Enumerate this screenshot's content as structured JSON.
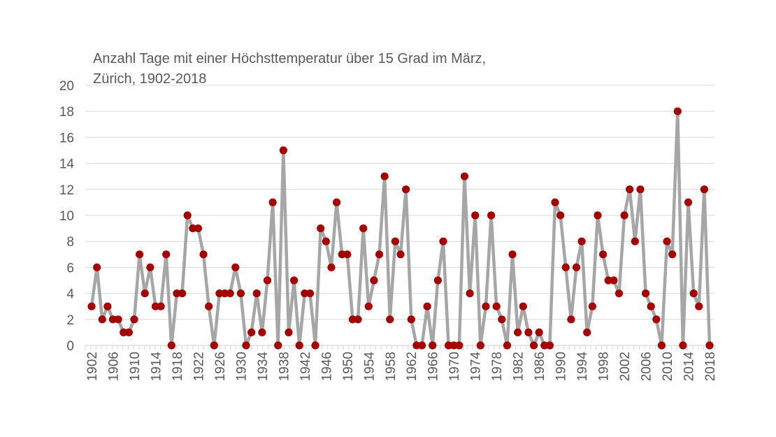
{
  "chart_data": {
    "type": "line",
    "title_line1": "Anzahl Tage mit einer Höchsttemperatur über 15 Grad im März,",
    "title_line2": "Zürich, 1902-2018",
    "xlabel": "",
    "ylabel": "",
    "ylim": [
      0,
      20
    ],
    "yticks": [
      0,
      2,
      4,
      6,
      8,
      10,
      12,
      14,
      16,
      18,
      20
    ],
    "xticks": [
      1902,
      1906,
      1910,
      1914,
      1918,
      1922,
      1926,
      1930,
      1934,
      1938,
      1942,
      1946,
      1950,
      1954,
      1958,
      1962,
      1966,
      1970,
      1974,
      1978,
      1982,
      1986,
      1990,
      1994,
      1998,
      2002,
      2006,
      2010,
      2014,
      2018
    ],
    "grid": true,
    "line_color": "#a6a6a6",
    "marker_color": "#a50000",
    "x_start": 1902,
    "x_end": 2018,
    "values": [
      3,
      6,
      2,
      3,
      2,
      2,
      1,
      1,
      2,
      7,
      4,
      6,
      3,
      3,
      7,
      0,
      4,
      4,
      10,
      9,
      9,
      7,
      3,
      0,
      4,
      4,
      4,
      6,
      4,
      0,
      1,
      4,
      1,
      5,
      11,
      0,
      15,
      1,
      5,
      0,
      4,
      4,
      0,
      9,
      8,
      6,
      11,
      7,
      7,
      2,
      2,
      9,
      3,
      5,
      7,
      13,
      2,
      8,
      7,
      12,
      2,
      0,
      0,
      3,
      0,
      5,
      8,
      0,
      0,
      0,
      13,
      4,
      10,
      0,
      3,
      10,
      3,
      2,
      0,
      7,
      1,
      3,
      1,
      0,
      1,
      0,
      0,
      11,
      10,
      6,
      2,
      6,
      8,
      1,
      3,
      10,
      7,
      5,
      5,
      4,
      10,
      12,
      8,
      12,
      4,
      3,
      2,
      0,
      8,
      7,
      18,
      0,
      11,
      4,
      3,
      12,
      0
    ]
  }
}
